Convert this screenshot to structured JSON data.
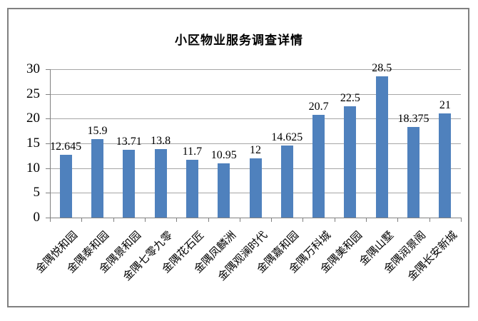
{
  "chart_data": {
    "type": "bar",
    "title": "小区物业服务调查详情",
    "categories": [
      "金隅悦和园",
      "金隅泰和园",
      "金隅景和园",
      "金隅七零九零",
      "金隅花石匠",
      "金隅凤麟洲",
      "金隅观澜时代",
      "金隅嘉和园",
      "金隅万科城",
      "金隅美和园",
      "金隅山墅",
      "金隅润景阁",
      "金隅长安新城"
    ],
    "values": [
      12.645,
      15.9,
      13.71,
      13.8,
      11.7,
      10.95,
      12,
      14.625,
      20.7,
      22.5,
      28.5,
      18.375,
      21
    ],
    "data_labels": [
      "12.645",
      "15.9",
      "13.71",
      "13.8",
      "11.7",
      "10.95",
      "12",
      "14.625",
      "20.7",
      "22.5",
      "28.5",
      "18.375",
      "21"
    ],
    "xlabel": "",
    "ylabel": "",
    "ylim": [
      0,
      30
    ],
    "yticks": [
      0,
      5,
      10,
      15,
      20,
      25,
      30
    ],
    "grid": "horizontal",
    "legend": "none",
    "x_label_rotation_deg": 45,
    "colors": {
      "bar_fill": "#4f81bd",
      "gridline": "#a6a6a6",
      "axis": "#808080",
      "frame_border": "#808080",
      "text": "#000000",
      "background": "#ffffff"
    }
  }
}
